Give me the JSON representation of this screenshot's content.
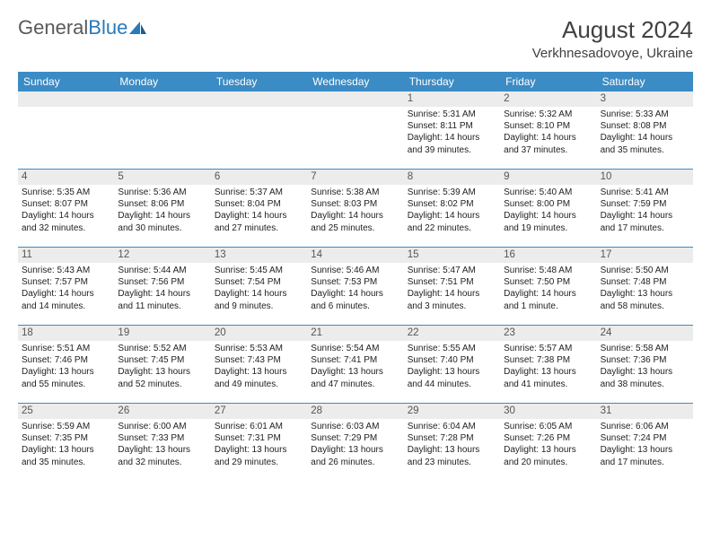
{
  "logo": {
    "word1": "General",
    "word2": "Blue"
  },
  "title": "August 2024",
  "location": "Verkhnesadovoye, Ukraine",
  "header_bg": "#3b8bc5",
  "daynum_bg": "#ececec",
  "dayNames": [
    "Sunday",
    "Monday",
    "Tuesday",
    "Wednesday",
    "Thursday",
    "Friday",
    "Saturday"
  ],
  "weeks": [
    [
      null,
      null,
      null,
      null,
      {
        "n": "1",
        "sr": "5:31 AM",
        "ss": "8:11 PM",
        "dl": "14 hours and 39 minutes."
      },
      {
        "n": "2",
        "sr": "5:32 AM",
        "ss": "8:10 PM",
        "dl": "14 hours and 37 minutes."
      },
      {
        "n": "3",
        "sr": "5:33 AM",
        "ss": "8:08 PM",
        "dl": "14 hours and 35 minutes."
      }
    ],
    [
      {
        "n": "4",
        "sr": "5:35 AM",
        "ss": "8:07 PM",
        "dl": "14 hours and 32 minutes."
      },
      {
        "n": "5",
        "sr": "5:36 AM",
        "ss": "8:06 PM",
        "dl": "14 hours and 30 minutes."
      },
      {
        "n": "6",
        "sr": "5:37 AM",
        "ss": "8:04 PM",
        "dl": "14 hours and 27 minutes."
      },
      {
        "n": "7",
        "sr": "5:38 AM",
        "ss": "8:03 PM",
        "dl": "14 hours and 25 minutes."
      },
      {
        "n": "8",
        "sr": "5:39 AM",
        "ss": "8:02 PM",
        "dl": "14 hours and 22 minutes."
      },
      {
        "n": "9",
        "sr": "5:40 AM",
        "ss": "8:00 PM",
        "dl": "14 hours and 19 minutes."
      },
      {
        "n": "10",
        "sr": "5:41 AM",
        "ss": "7:59 PM",
        "dl": "14 hours and 17 minutes."
      }
    ],
    [
      {
        "n": "11",
        "sr": "5:43 AM",
        "ss": "7:57 PM",
        "dl": "14 hours and 14 minutes."
      },
      {
        "n": "12",
        "sr": "5:44 AM",
        "ss": "7:56 PM",
        "dl": "14 hours and 11 minutes."
      },
      {
        "n": "13",
        "sr": "5:45 AM",
        "ss": "7:54 PM",
        "dl": "14 hours and 9 minutes."
      },
      {
        "n": "14",
        "sr": "5:46 AM",
        "ss": "7:53 PM",
        "dl": "14 hours and 6 minutes."
      },
      {
        "n": "15",
        "sr": "5:47 AM",
        "ss": "7:51 PM",
        "dl": "14 hours and 3 minutes."
      },
      {
        "n": "16",
        "sr": "5:48 AM",
        "ss": "7:50 PM",
        "dl": "14 hours and 1 minute."
      },
      {
        "n": "17",
        "sr": "5:50 AM",
        "ss": "7:48 PM",
        "dl": "13 hours and 58 minutes."
      }
    ],
    [
      {
        "n": "18",
        "sr": "5:51 AM",
        "ss": "7:46 PM",
        "dl": "13 hours and 55 minutes."
      },
      {
        "n": "19",
        "sr": "5:52 AM",
        "ss": "7:45 PM",
        "dl": "13 hours and 52 minutes."
      },
      {
        "n": "20",
        "sr": "5:53 AM",
        "ss": "7:43 PM",
        "dl": "13 hours and 49 minutes."
      },
      {
        "n": "21",
        "sr": "5:54 AM",
        "ss": "7:41 PM",
        "dl": "13 hours and 47 minutes."
      },
      {
        "n": "22",
        "sr": "5:55 AM",
        "ss": "7:40 PM",
        "dl": "13 hours and 44 minutes."
      },
      {
        "n": "23",
        "sr": "5:57 AM",
        "ss": "7:38 PM",
        "dl": "13 hours and 41 minutes."
      },
      {
        "n": "24",
        "sr": "5:58 AM",
        "ss": "7:36 PM",
        "dl": "13 hours and 38 minutes."
      }
    ],
    [
      {
        "n": "25",
        "sr": "5:59 AM",
        "ss": "7:35 PM",
        "dl": "13 hours and 35 minutes."
      },
      {
        "n": "26",
        "sr": "6:00 AM",
        "ss": "7:33 PM",
        "dl": "13 hours and 32 minutes."
      },
      {
        "n": "27",
        "sr": "6:01 AM",
        "ss": "7:31 PM",
        "dl": "13 hours and 29 minutes."
      },
      {
        "n": "28",
        "sr": "6:03 AM",
        "ss": "7:29 PM",
        "dl": "13 hours and 26 minutes."
      },
      {
        "n": "29",
        "sr": "6:04 AM",
        "ss": "7:28 PM",
        "dl": "13 hours and 23 minutes."
      },
      {
        "n": "30",
        "sr": "6:05 AM",
        "ss": "7:26 PM",
        "dl": "13 hours and 20 minutes."
      },
      {
        "n": "31",
        "sr": "6:06 AM",
        "ss": "7:24 PM",
        "dl": "13 hours and 17 minutes."
      }
    ]
  ],
  "labels": {
    "sunrise": "Sunrise:",
    "sunset": "Sunset:",
    "daylight": "Daylight:"
  }
}
